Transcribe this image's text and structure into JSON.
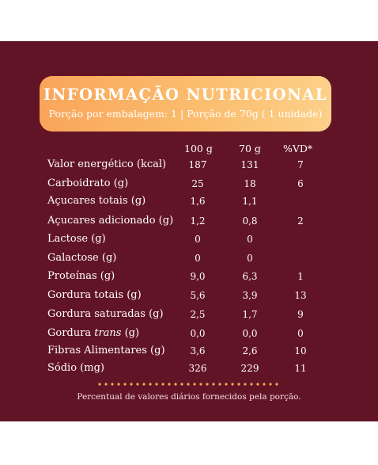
{
  "title": "INFORMAÇÃO NUTRICIONAL",
  "subtitle": "Porção por embalagem: 1 | Porção de 70g ( 1 unidade)",
  "columns": [
    "100 g",
    "70 g",
    "%VD*"
  ],
  "rows": [
    {
      "label": "Valor energético  (kcal)",
      "v100": "187",
      "v70": "131",
      "vd": "7"
    },
    {
      "label": "Carboidrato  (g)",
      "v100": "25",
      "v70": "18",
      "vd": "6"
    },
    {
      "label": "Açucares totais  (g)",
      "v100": "1,6",
      "v70": "1,1",
      "vd": ""
    },
    {
      "label": "Açucares adicionado  (g)",
      "v100": "1,2",
      "v70": "0,8",
      "vd": "2"
    },
    {
      "label": "Lactose (g)",
      "v100": "0",
      "v70": "0",
      "vd": ""
    },
    {
      "label": "Galactose (g)",
      "v100": "0",
      "v70": "0",
      "vd": ""
    },
    {
      "label": "Proteínas  (g)",
      "v100": "9,0",
      "v70": "6,3",
      "vd": "1"
    },
    {
      "label": "Gordura totais (g)",
      "v100": "5,6",
      "v70": "3,9",
      "vd": "13"
    },
    {
      "label": "Gordura saturadas (g)",
      "v100": "2,5",
      "v70": "1,7",
      "vd": "9"
    },
    {
      "label_prefix": "Gordura ",
      "label_italic": "trans",
      "label_suffix": " (g)",
      "v100": "0,0",
      "v70": "0,0",
      "vd": "0"
    },
    {
      "label": "Fibras Alimentares (g)",
      "v100": "3,6",
      "v70": "2,6",
      "vd": "10"
    },
    {
      "label": "Sódio  (mg)",
      "v100": "326",
      "v70": "229",
      "vd": "11"
    }
  ],
  "footnote": "Percentual de valores diários fornecidos pela porção."
}
